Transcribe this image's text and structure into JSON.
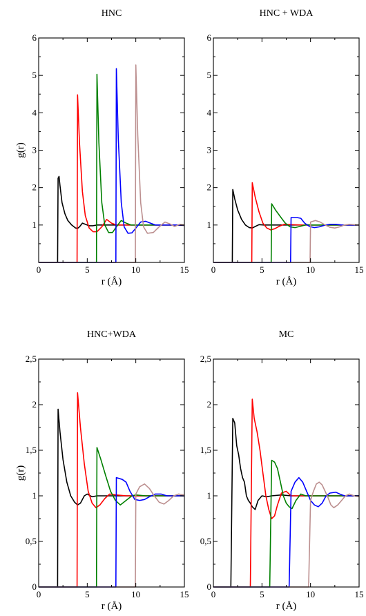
{
  "colors": {
    "s1": "#000000",
    "s2": "#ff0000",
    "s3": "#008000",
    "s4": "#0000ff",
    "s5": "#bc8f8f"
  },
  "chart_data": [
    {
      "type": "line",
      "title": "HNC",
      "xlabel": "r  (Å)",
      "ylabel": "g(r)",
      "xlim": [
        0,
        15
      ],
      "ylim": [
        0,
        6
      ],
      "xticks": [
        0,
        5,
        10,
        15
      ],
      "xtick_labels": [
        "0",
        "5",
        "10",
        "15"
      ],
      "yticks": [
        1,
        2,
        3,
        4,
        5,
        6
      ],
      "ytick_labels": [
        "1",
        "2",
        "3",
        "4",
        "5",
        "6"
      ],
      "grid": false,
      "series": [
        {
          "color": "#000000",
          "x": [
            0,
            1.95,
            2.0,
            2.1,
            2.2,
            2.4,
            2.7,
            3.0,
            3.4,
            3.8,
            4.0,
            4.2,
            4.5,
            4.8,
            5.2,
            5.6,
            6,
            7,
            8,
            9,
            10,
            11,
            12,
            13,
            14,
            15
          ],
          "y": [
            0,
            0,
            2.25,
            2.3,
            2.05,
            1.6,
            1.3,
            1.12,
            1.0,
            0.92,
            0.91,
            0.95,
            1.05,
            1.02,
            0.98,
            0.98,
            1.0,
            1.0,
            1.0,
            1.0,
            1.0,
            1.0,
            1.0,
            1.0,
            1.0,
            0.99
          ]
        },
        {
          "color": "#ff0000",
          "x": [
            0,
            3.95,
            4.0,
            4.2,
            4.5,
            4.8,
            5.2,
            5.6,
            6.0,
            6.5,
            7.0,
            7.5,
            8,
            9,
            10,
            11,
            12,
            13,
            14,
            15
          ],
          "y": [
            0,
            0,
            4.48,
            3.2,
            1.9,
            1.25,
            0.92,
            0.82,
            0.82,
            0.95,
            1.15,
            1.05,
            1.0,
            1.0,
            1.0,
            1.0,
            1.0,
            1.0,
            1.0,
            1.0
          ]
        },
        {
          "color": "#008000",
          "x": [
            0,
            5.95,
            6.0,
            6.2,
            6.5,
            6.8,
            7.2,
            7.6,
            8.0,
            8.5,
            9.0,
            9.5,
            10,
            11,
            12,
            13,
            14,
            15
          ],
          "y": [
            0,
            0,
            5.03,
            3.2,
            1.6,
            1.0,
            0.8,
            0.8,
            0.95,
            1.12,
            1.05,
            1.0,
            1.0,
            1.0,
            1.0,
            1.0,
            1.0,
            1.0
          ]
        },
        {
          "color": "#0000ff",
          "x": [
            0,
            7.95,
            8.0,
            8.2,
            8.5,
            8.8,
            9.2,
            9.6,
            10.0,
            10.5,
            11.0,
            11.5,
            12,
            13,
            14,
            15
          ],
          "y": [
            0,
            0,
            5.18,
            3.3,
            1.6,
            0.95,
            0.78,
            0.79,
            0.92,
            1.08,
            1.1,
            1.05,
            1.0,
            1.0,
            1.0,
            1.0
          ]
        },
        {
          "color": "#bc8f8f",
          "x": [
            0,
            9.95,
            10.0,
            10.2,
            10.5,
            10.8,
            11.2,
            11.8,
            12.4,
            13.0,
            13.5,
            14.0,
            14.5,
            15
          ],
          "y": [
            0,
            0,
            5.28,
            3.4,
            1.6,
            0.95,
            0.78,
            0.8,
            0.95,
            1.08,
            1.03,
            0.96,
            1.02,
            1.0
          ]
        }
      ]
    },
    {
      "type": "line",
      "title": "HNC + WDA",
      "xlabel": "r  (Å)",
      "ylabel": "",
      "xlim": [
        0,
        15
      ],
      "ylim": [
        0,
        6
      ],
      "xticks": [
        0,
        5,
        10,
        15
      ],
      "xtick_labels": [
        "0",
        "5",
        "10",
        "15"
      ],
      "yticks": [
        1,
        2,
        3,
        4,
        5,
        6
      ],
      "ytick_labels": [
        "1",
        "2",
        "3",
        "4",
        "5",
        "6"
      ],
      "grid": false,
      "series": [
        {
          "color": "#000000",
          "x": [
            0,
            1.95,
            2.0,
            2.2,
            2.5,
            2.9,
            3.3,
            3.7,
            4.0,
            4.3,
            4.7,
            5.2,
            6,
            7,
            8,
            9,
            10,
            11,
            12,
            13,
            14,
            15
          ],
          "y": [
            0,
            0,
            1.95,
            1.7,
            1.4,
            1.15,
            1.0,
            0.93,
            0.92,
            0.96,
            1.01,
            1.0,
            1.0,
            1.0,
            1.0,
            1.0,
            1.0,
            1.0,
            1.0,
            1.0,
            1.0,
            1.0
          ]
        },
        {
          "color": "#ff0000",
          "x": [
            0,
            3.95,
            4.0,
            4.3,
            4.7,
            5.1,
            5.5,
            5.9,
            6.3,
            6.8,
            7.3,
            8,
            9,
            10,
            11,
            12,
            13,
            14,
            15
          ],
          "y": [
            0,
            0,
            2.13,
            1.75,
            1.35,
            1.05,
            0.92,
            0.87,
            0.9,
            0.97,
            1.02,
            1.01,
            1.0,
            1.0,
            1.0,
            1.0,
            1.0,
            1.0,
            1.0
          ]
        },
        {
          "color": "#008000",
          "x": [
            0,
            5.95,
            6.0,
            6.4,
            6.9,
            7.4,
            7.9,
            8.4,
            9.0,
            9.6,
            10,
            11,
            12,
            13,
            14,
            15
          ],
          "y": [
            0,
            0,
            1.57,
            1.4,
            1.22,
            1.05,
            0.95,
            0.93,
            0.97,
            1.01,
            1.0,
            1.0,
            1.0,
            1.0,
            1.0,
            1.0
          ]
        },
        {
          "color": "#0000ff",
          "x": [
            0,
            7.95,
            8.0,
            8.6,
            9.0,
            9.4,
            9.9,
            10.4,
            10.9,
            11.4,
            12.0,
            12.6,
            13.2,
            14,
            15
          ],
          "y": [
            0,
            0,
            1.2,
            1.2,
            1.18,
            1.05,
            0.96,
            0.93,
            0.95,
            0.99,
            1.02,
            1.02,
            1.0,
            1.0,
            1.0
          ]
        },
        {
          "color": "#bc8f8f",
          "x": [
            0,
            9.95,
            10.0,
            10.5,
            11.0,
            11.5,
            12.0,
            12.5,
            13.0,
            13.5,
            14.0,
            14.5,
            15
          ],
          "y": [
            0,
            0,
            1.08,
            1.12,
            1.08,
            1.0,
            0.94,
            0.92,
            0.95,
            1.0,
            1.02,
            1.01,
            1.0
          ]
        }
      ]
    },
    {
      "type": "line",
      "title": "HNC+WDA",
      "xlabel": "r  (Å)",
      "ylabel": "g(r)",
      "xlim": [
        0,
        15
      ],
      "ylim": [
        0,
        2.5
      ],
      "xticks": [
        0,
        5,
        10,
        15
      ],
      "xtick_labels": [
        "0",
        "5",
        "10",
        "15"
      ],
      "yticks": [
        0,
        0.5,
        1,
        1.5,
        2,
        2.5
      ],
      "ytick_labels": [
        "0",
        "0,5",
        "1",
        "1,5",
        "2",
        "2,5"
      ],
      "grid": false,
      "series": [
        {
          "color": "#000000",
          "x": [
            0,
            1.95,
            2.0,
            2.2,
            2.5,
            2.9,
            3.3,
            3.7,
            4.0,
            4.3,
            4.7,
            5.0,
            5.5,
            6,
            7,
            8,
            9,
            10,
            11,
            12,
            13,
            14,
            15
          ],
          "y": [
            0,
            0,
            1.95,
            1.7,
            1.4,
            1.15,
            1.0,
            0.93,
            0.9,
            0.92,
            1.0,
            1.02,
            0.99,
            1.0,
            1.0,
            1.0,
            1.0,
            1.0,
            1.0,
            1.0,
            1.0,
            1.0,
            1.0
          ]
        },
        {
          "color": "#ff0000",
          "x": [
            0,
            3.95,
            4.0,
            4.3,
            4.7,
            5.1,
            5.5,
            5.9,
            6.3,
            6.8,
            7.3,
            8,
            9,
            10,
            11,
            12,
            13,
            14,
            15
          ],
          "y": [
            0,
            0,
            2.13,
            1.75,
            1.35,
            1.05,
            0.92,
            0.87,
            0.9,
            0.97,
            1.02,
            1.01,
            1.0,
            1.0,
            1.0,
            1.0,
            1.0,
            1.0,
            1.0
          ]
        },
        {
          "color": "#008000",
          "x": [
            0,
            5.95,
            6.0,
            6.4,
            6.9,
            7.4,
            7.9,
            8.4,
            9.0,
            9.6,
            10,
            11,
            12,
            13,
            14,
            15
          ],
          "y": [
            0,
            0,
            1.53,
            1.4,
            1.22,
            1.05,
            0.95,
            0.9,
            0.95,
            1.0,
            1.01,
            1.0,
            1.0,
            1.0,
            1.0,
            1.0
          ]
        },
        {
          "color": "#0000ff",
          "x": [
            0,
            7.95,
            8.0,
            8.6,
            9.0,
            9.4,
            9.9,
            10.4,
            10.9,
            11.4,
            12.0,
            12.6,
            13.2,
            14,
            15
          ],
          "y": [
            0,
            0,
            1.2,
            1.18,
            1.15,
            1.05,
            0.96,
            0.95,
            0.96,
            0.99,
            1.02,
            1.02,
            1.0,
            1.0,
            1.0
          ]
        },
        {
          "color": "#bc8f8f",
          "x": [
            0,
            9.95,
            10.0,
            10.4,
            10.9,
            11.4,
            11.9,
            12.4,
            12.9,
            13.4,
            13.9,
            14.4,
            15
          ],
          "y": [
            0,
            0,
            1.02,
            1.1,
            1.13,
            1.08,
            1.0,
            0.93,
            0.91,
            0.95,
            1.0,
            1.02,
            1.01
          ]
        }
      ]
    },
    {
      "type": "line",
      "title": "MC",
      "xlabel": "r  (Å)",
      "ylabel": "",
      "xlim": [
        0,
        15
      ],
      "ylim": [
        0,
        2.5
      ],
      "xticks": [
        0,
        5,
        10,
        15
      ],
      "xtick_labels": [
        "0",
        "5",
        "10",
        "15"
      ],
      "yticks": [
        0,
        0.5,
        1,
        1.5,
        2,
        2.5
      ],
      "ytick_labels": [
        "0",
        "0,5",
        "1",
        "1,5",
        "2",
        "2,5"
      ],
      "grid": false,
      "series": [
        {
          "color": "#000000",
          "x": [
            0,
            1.8,
            2.0,
            2.2,
            2.4,
            2.6,
            2.8,
            3.0,
            3.2,
            3.4,
            3.6,
            3.8,
            4.0,
            4.3,
            4.6,
            5.0,
            5.5,
            6,
            7,
            8,
            9,
            10,
            11,
            12,
            13,
            14,
            15
          ],
          "y": [
            0,
            0,
            1.85,
            1.8,
            1.55,
            1.45,
            1.3,
            1.2,
            1.15,
            1.0,
            0.95,
            0.92,
            0.88,
            0.85,
            0.95,
            1.0,
            0.99,
            1.0,
            1.01,
            1.0,
            1.0,
            1.0,
            1.0,
            1.0,
            1.0,
            1.0,
            1.0
          ]
        },
        {
          "color": "#ff0000",
          "x": [
            0,
            3.8,
            4.0,
            4.2,
            4.5,
            4.8,
            5.1,
            5.4,
            5.7,
            6.0,
            6.3,
            6.6,
            7.0,
            7.5,
            8,
            9,
            10,
            11,
            12,
            13,
            14,
            15
          ],
          "y": [
            0,
            0,
            2.06,
            1.85,
            1.7,
            1.5,
            1.25,
            1.0,
            0.85,
            0.75,
            0.78,
            0.9,
            1.03,
            1.05,
            1.0,
            1.0,
            1.0,
            1.0,
            1.0,
            1.0,
            1.0,
            1.0
          ]
        },
        {
          "color": "#008000",
          "x": [
            0,
            5.8,
            6.0,
            6.3,
            6.6,
            6.9,
            7.2,
            7.5,
            7.8,
            8.1,
            8.5,
            9.0,
            9.5,
            10,
            11,
            12,
            13,
            14,
            15
          ],
          "y": [
            0,
            0,
            1.39,
            1.37,
            1.3,
            1.15,
            1.0,
            0.92,
            0.88,
            0.86,
            0.95,
            1.02,
            1.0,
            1.0,
            1.0,
            1.0,
            1.0,
            1.0,
            1.0
          ]
        },
        {
          "color": "#0000ff",
          "x": [
            0,
            7.8,
            8.0,
            8.4,
            8.8,
            9.2,
            9.6,
            10.0,
            10.4,
            10.8,
            11.2,
            11.6,
            12.0,
            12.6,
            13.0,
            13.5,
            14,
            15
          ],
          "y": [
            0,
            0,
            1.05,
            1.15,
            1.2,
            1.15,
            1.05,
            0.95,
            0.9,
            0.88,
            0.92,
            1.0,
            1.03,
            1.04,
            1.02,
            1.0,
            1.0,
            1.0
          ]
        },
        {
          "color": "#bc8f8f",
          "x": [
            0,
            9.8,
            10.0,
            10.3,
            10.6,
            10.9,
            11.2,
            11.5,
            11.8,
            12.1,
            12.4,
            12.8,
            13.2,
            13.6,
            14.0,
            14.5,
            15
          ],
          "y": [
            0,
            0,
            0.95,
            1.05,
            1.13,
            1.15,
            1.12,
            1.05,
            0.98,
            0.9,
            0.87,
            0.9,
            0.95,
            1.0,
            1.02,
            1.0,
            0.99
          ]
        }
      ]
    }
  ]
}
